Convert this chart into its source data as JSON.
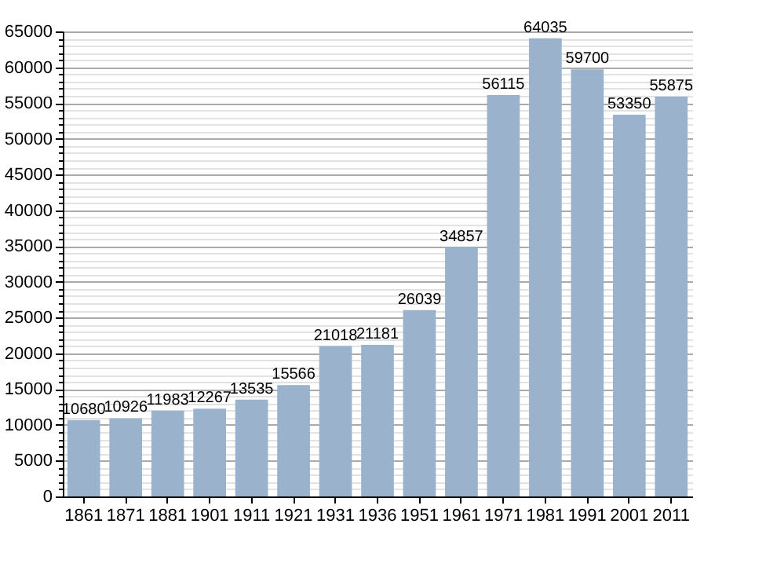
{
  "chart_data": {
    "type": "bar",
    "categories": [
      "1861",
      "1871",
      "1881",
      "1901",
      "1911",
      "1921",
      "1931",
      "1936",
      "1951",
      "1961",
      "1971",
      "1981",
      "1991",
      "2001",
      "2011"
    ],
    "values": [
      10680,
      10926,
      11983,
      12267,
      13535,
      15566,
      21018,
      21181,
      26039,
      34857,
      56115,
      64035,
      59700,
      53350,
      55875
    ],
    "color": "#9bb2cc",
    "ylim": [
      0,
      65000
    ],
    "yticks": [
      0,
      {
        "value": 1000,
        "label": null
      },
      {
        "value": 2000,
        "label": null
      },
      {
        "value": 3000,
        "label": null
      },
      {
        "value": 4000,
        "label": null
      },
      5000,
      {
        "value": 6000,
        "label": null
      },
      {
        "value": 7000,
        "label": null
      },
      {
        "value": 8000,
        "label": null
      },
      {
        "value": 9000,
        "label": null
      },
      10000,
      {
        "value": 11000,
        "label": null
      },
      {
        "value": 12000,
        "label": null
      },
      {
        "value": 13000,
        "label": null
      },
      {
        "value": 14000,
        "label": null
      },
      15000,
      {
        "value": 16000,
        "label": null
      },
      {
        "value": 17000,
        "label": null
      },
      {
        "value": 18000,
        "label": null
      },
      {
        "value": 19000,
        "label": null
      },
      20000,
      {
        "value": 21000,
        "label": null
      },
      {
        "value": 22000,
        "label": null
      },
      {
        "value": 23000,
        "label": null
      },
      {
        "value": 24000,
        "label": null
      },
      25000,
      {
        "value": 26000,
        "label": null
      },
      {
        "value": 27000,
        "label": null
      },
      {
        "value": 28000,
        "label": null
      },
      {
        "value": 29000,
        "label": null
      },
      30000,
      {
        "value": 31000,
        "label": null
      },
      {
        "value": 32000,
        "label": null
      },
      {
        "value": 33000,
        "label": null
      },
      {
        "value": 34000,
        "label": null
      },
      35000,
      {
        "value": 36000,
        "label": null
      },
      {
        "value": 37000,
        "label": null
      },
      {
        "value": 38000,
        "label": null
      },
      {
        "value": 39000,
        "label": null
      },
      40000,
      {
        "value": 41000,
        "label": null
      },
      {
        "value": 42000,
        "label": null
      },
      {
        "value": 43000,
        "label": null
      },
      {
        "value": 44000,
        "label": null
      },
      45000,
      {
        "value": 46000,
        "label": null
      },
      {
        "value": 47000,
        "label": null
      },
      {
        "value": 48000,
        "label": null
      },
      {
        "value": 49000,
        "label": null
      },
      50000,
      {
        "value": 51000,
        "label": null
      },
      {
        "value": 52000,
        "label": null
      },
      {
        "value": 53000,
        "label": null
      },
      {
        "value": 54000,
        "label": null
      },
      55000,
      {
        "value": 56000,
        "label": null
      },
      {
        "value": 57000,
        "label": null
      },
      {
        "value": 58000,
        "label": null
      },
      {
        "value": 59000,
        "label": null
      },
      60000,
      {
        "value": 61000,
        "label": null
      },
      {
        "value": 62000,
        "label": null
      },
      {
        "value": 63000,
        "label": null
      },
      {
        "value": 64000,
        "label": null
      },
      65000
    ],
    "grid": true,
    "data_labels": true
  }
}
